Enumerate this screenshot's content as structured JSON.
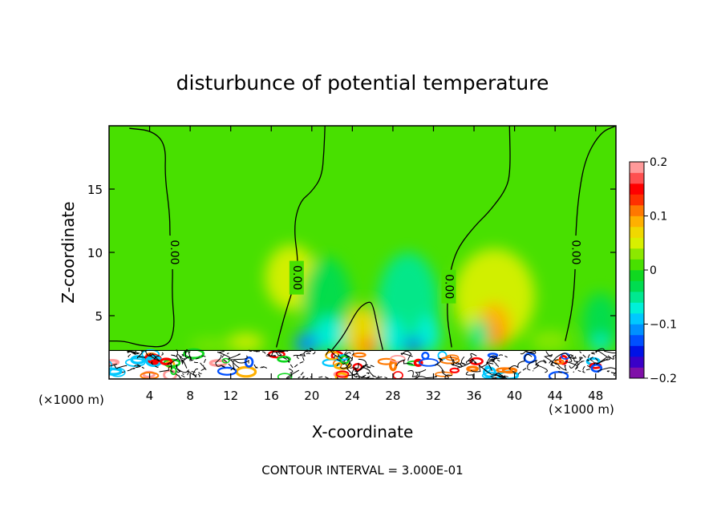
{
  "chart_data": {
    "type": "heatmap",
    "title": "disturbunce of potential temperature",
    "xlabel": "X-coordinate",
    "ylabel": "Z-coordinate",
    "x_unit": "(×1000 m)",
    "y_unit": "(×1000 m)",
    "footer": "CONTOUR INTERVAL = 3.000E-01",
    "xlim": [
      0,
      50
    ],
    "ylim": [
      0,
      20
    ],
    "x_ticks": [
      "4",
      "8",
      "12",
      "16",
      "20",
      "24",
      "28",
      "32",
      "36",
      "40",
      "44",
      "48"
    ],
    "y_ticks": [
      "5",
      "10",
      "15"
    ],
    "x_tick_values": [
      4,
      8,
      12,
      16,
      20,
      24,
      28,
      32,
      36,
      40,
      44,
      48
    ],
    "y_tick_values": [
      5,
      10,
      15
    ],
    "colorbar": {
      "range": [
        -0.2,
        0.2
      ],
      "tick_labels": [
        "0.2",
        "0.1",
        "0",
        "−0.1",
        "−0.2"
      ],
      "tick_values": [
        0.2,
        0.1,
        0,
        -0.1,
        -0.2
      ],
      "colors": [
        "#7f0fa8",
        "#3a00c8",
        "#0012e6",
        "#0050ff",
        "#0090ff",
        "#00c8ff",
        "#00f0d8",
        "#00e890",
        "#00dc50",
        "#10d820",
        "#48e000",
        "#8ce800",
        "#d8f000",
        "#f0d800",
        "#ffb000",
        "#ff7800",
        "#ff3000",
        "#ff0000",
        "#ff5050",
        "#ff9a9a"
      ]
    },
    "background_value": 0.0,
    "contour_label": "0.00",
    "zero_contours": [
      {
        "label_at": [
          6.4,
          10.0
        ],
        "points": [
          [
            0,
            3.0
          ],
          [
            1.5,
            3.0
          ],
          [
            3.2,
            2.6
          ],
          [
            5.8,
            2.5
          ],
          [
            6.5,
            4.0
          ],
          [
            6.2,
            6.5
          ],
          [
            6.3,
            9.0
          ],
          [
            6.0,
            11.0
          ],
          [
            6.0,
            13.0
          ],
          [
            5.5,
            16.0
          ],
          [
            5.6,
            18.5
          ],
          [
            4.3,
            19.6
          ],
          [
            2.0,
            19.8
          ]
        ]
      },
      {
        "label_at": [
          18.5,
          8.0
        ],
        "points": [
          [
            16.5,
            2.5
          ],
          [
            17.3,
            5.0
          ],
          [
            18.3,
            7.5
          ],
          [
            18.7,
            9.0
          ],
          [
            18.2,
            12.0
          ],
          [
            18.8,
            14.0
          ],
          [
            20.0,
            14.8
          ],
          [
            21.0,
            16.0
          ],
          [
            21.2,
            18.0
          ],
          [
            21.3,
            20.0
          ]
        ]
      },
      {
        "label_at": [
          33.5,
          7.3
        ],
        "points": [
          [
            33.8,
            2.5
          ],
          [
            33.3,
            5.0
          ],
          [
            33.5,
            7.5
          ],
          [
            33.8,
            9.0
          ],
          [
            34.5,
            10.5
          ],
          [
            36.2,
            12.2
          ],
          [
            37.5,
            13.2
          ],
          [
            39.2,
            15.0
          ],
          [
            39.6,
            16.5
          ],
          [
            39.5,
            20.0
          ]
        ]
      },
      {
        "label_at": [
          46.0,
          10.0
        ],
        "points": [
          [
            45.0,
            3.0
          ],
          [
            45.7,
            5.5
          ],
          [
            46.0,
            8.5
          ],
          [
            46.0,
            11.0
          ],
          [
            46.3,
            14.5
          ],
          [
            47.0,
            17.5
          ],
          [
            48.5,
            19.5
          ],
          [
            50.0,
            20.0
          ]
        ]
      },
      {
        "label_at": null,
        "points": [
          [
            22.0,
            2.3
          ],
          [
            23.2,
            3.5
          ],
          [
            24.5,
            5.5
          ],
          [
            25.5,
            6.1
          ],
          [
            26.0,
            6.0
          ],
          [
            26.5,
            4.0
          ],
          [
            27.0,
            2.3
          ]
        ]
      }
    ],
    "field_blobs": [
      {
        "x": 18.0,
        "z": 8.0,
        "rx": 2.6,
        "rz": 2.6,
        "value": 0.05
      },
      {
        "x": 21.5,
        "z": 6.0,
        "rx": 2.4,
        "rz": 3.6,
        "value": -0.03
      },
      {
        "x": 21.8,
        "z": 3.5,
        "rx": 1.6,
        "rz": 1.4,
        "value": -0.07
      },
      {
        "x": 19.5,
        "z": 2.8,
        "rx": 1.2,
        "rz": 0.9,
        "value": -0.12
      },
      {
        "x": 25.0,
        "z": 3.6,
        "rx": 1.8,
        "rz": 2.2,
        "value": 0.06
      },
      {
        "x": 25.5,
        "z": 2.6,
        "rx": 1.0,
        "rz": 0.6,
        "value": 0.12
      },
      {
        "x": 29.5,
        "z": 6.0,
        "rx": 3.0,
        "rz": 4.0,
        "value": -0.04
      },
      {
        "x": 28.0,
        "z": 3.2,
        "rx": 1.2,
        "rz": 1.6,
        "value": -0.08
      },
      {
        "x": 31.5,
        "z": 3.5,
        "rx": 1.2,
        "rz": 1.5,
        "value": -0.08
      },
      {
        "x": 30.0,
        "z": 2.7,
        "rx": 1.0,
        "rz": 0.5,
        "value": -0.13
      },
      {
        "x": 38.0,
        "z": 6.5,
        "rx": 4.0,
        "rz": 3.8,
        "value": 0.05
      },
      {
        "x": 38.0,
        "z": 4.2,
        "rx": 1.6,
        "rz": 1.8,
        "value": 0.08
      },
      {
        "x": 38.2,
        "z": 3.6,
        "rx": 0.6,
        "rz": 0.6,
        "value": 0.11
      },
      {
        "x": 36.5,
        "z": 3.5,
        "rx": 1.0,
        "rz": 1.2,
        "value": -0.05
      },
      {
        "x": 48.5,
        "z": 4.5,
        "rx": 1.8,
        "rz": 2.3,
        "value": -0.03
      },
      {
        "x": 48.5,
        "z": 2.8,
        "rx": 0.9,
        "rz": 0.6,
        "value": -0.08
      },
      {
        "x": 13.5,
        "z": 2.9,
        "rx": 1.8,
        "rz": 0.7,
        "value": 0.04
      },
      {
        "x": 10.0,
        "z": 2.7,
        "rx": 2.0,
        "rz": 0.4,
        "value": 0.03
      },
      {
        "x": 43.5,
        "z": 3.0,
        "rx": 2.0,
        "rz": 0.8,
        "value": 0.03
      }
    ],
    "boundary_layer_top": 2.25
  }
}
